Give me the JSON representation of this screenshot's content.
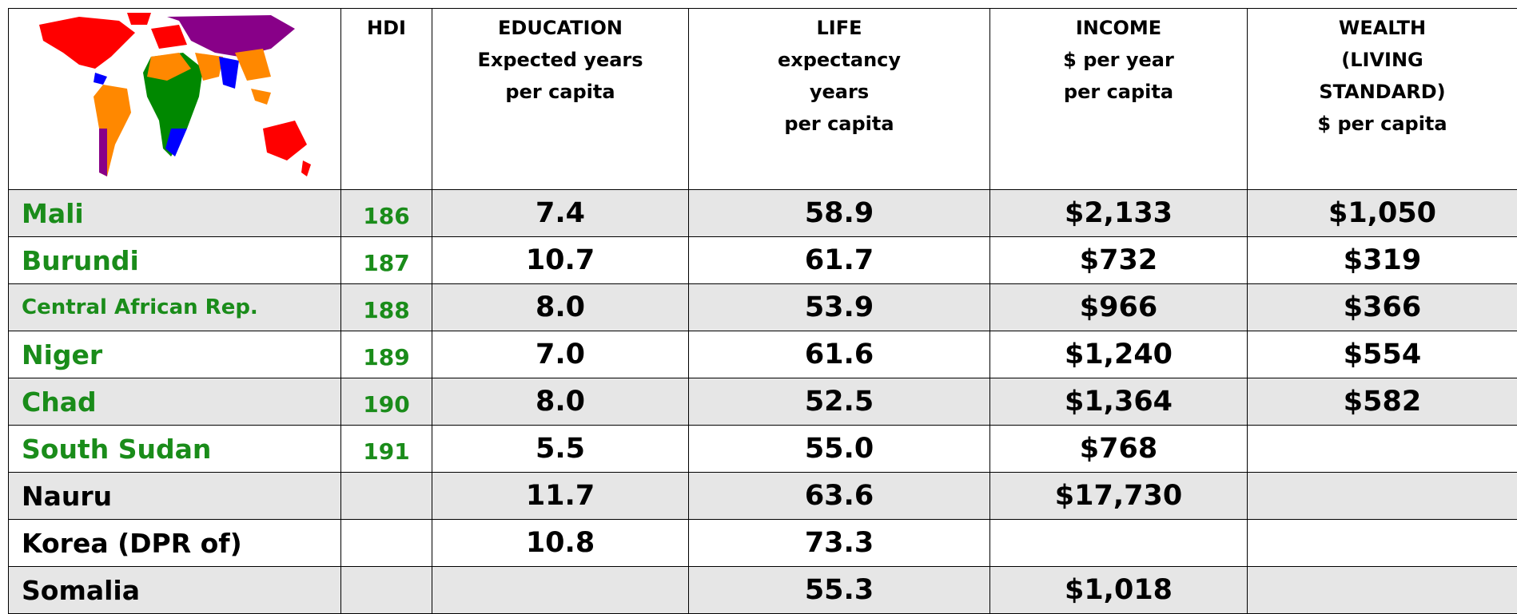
{
  "table": {
    "header": [
      [
        "HDI"
      ],
      [
        "EDUCATION",
        "Expected years",
        "per capita"
      ],
      [
        "LIFE",
        "expectancy",
        "years",
        "per capita"
      ],
      [
        "INCOME",
        "$ per year",
        "per capita"
      ],
      [
        "WEALTH",
        "(LIVING",
        "STANDARD)",
        "$ per capita"
      ]
    ],
    "rows": [
      [
        "Mali",
        "186",
        "7.4",
        "58.9",
        "$2,133",
        "$1,050"
      ],
      [
        "Burundi",
        "187",
        "10.7",
        "61.7",
        "$732",
        "$319"
      ],
      [
        "Central African Rep.",
        "188",
        "8.0",
        "53.9",
        "$966",
        "$366"
      ],
      [
        "Niger",
        "189",
        "7.0",
        "61.6",
        "$1,240",
        "$554"
      ],
      [
        "Chad",
        "190",
        "8.0",
        "52.5",
        "$1,364",
        "$582"
      ],
      [
        "South Sudan",
        "191",
        "5.5",
        "55.0",
        "$768",
        null
      ],
      [
        "Nauru",
        null,
        "11.7",
        "63.6",
        "$17,730",
        null
      ],
      [
        "Korea (DPR of)",
        null,
        "10.8",
        "73.3",
        null,
        null
      ],
      [
        "Somalia",
        null,
        null,
        "55.3",
        "$1,018",
        null
      ]
    ]
  }
}
